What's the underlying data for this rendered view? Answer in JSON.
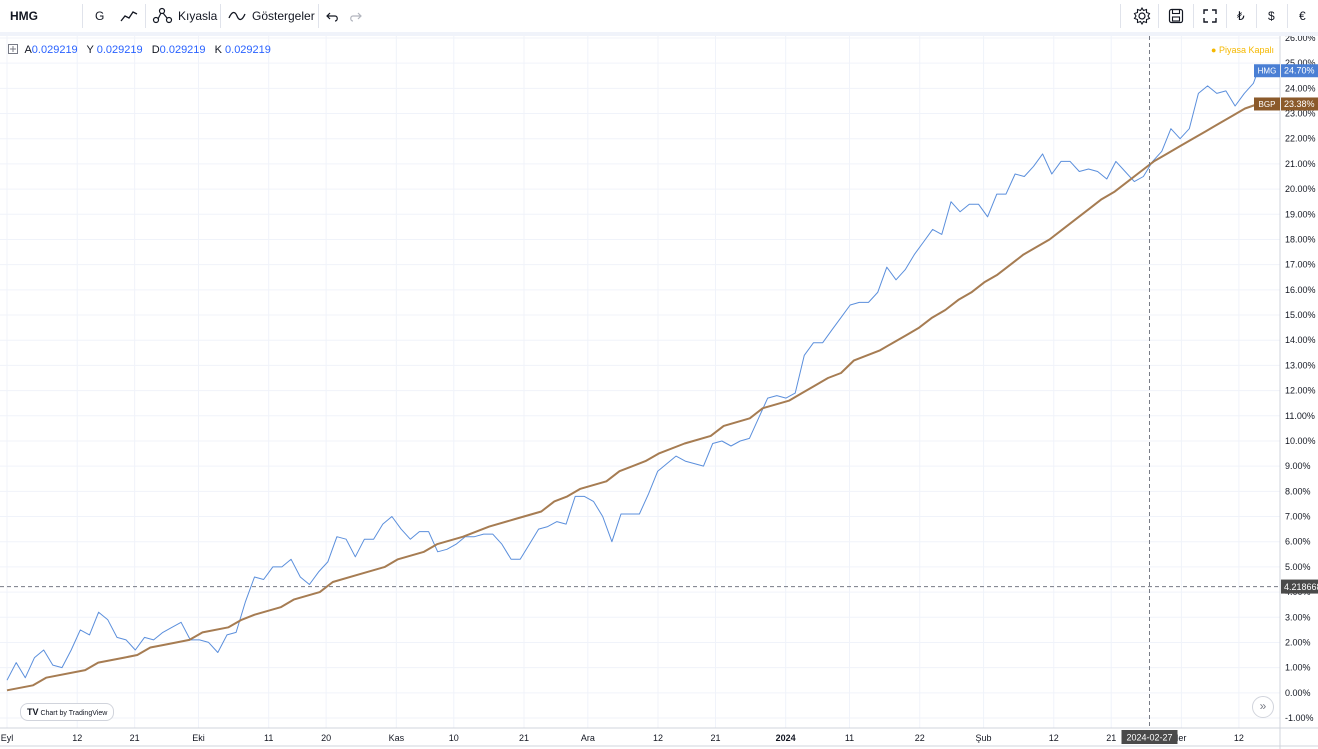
{
  "toolbar": {
    "symbol": "HMG",
    "interval": "G",
    "compare_label": "Kıyasla",
    "indicators_label": "Göstergeler",
    "currency_buttons": [
      "₺",
      "$",
      "€"
    ]
  },
  "legend": {
    "o_label": "A",
    "o_value": "0.029219",
    "h_label": "Y",
    "h_value": "0.029219",
    "l_label": "D",
    "l_value": "0.029219",
    "c_label": "K",
    "c_value": "0.029219"
  },
  "market_status": "Piyasa Kapalı",
  "badge_text": "Chart by TradingView",
  "colors": {
    "hmg": "#5b8fdc",
    "bgp": "#a67c52",
    "hmg_label_bg": "#4a7fd4",
    "bgp_label_bg": "#8b5a2b"
  },
  "chart_data": {
    "type": "line",
    "y_unit": "%",
    "ylim": [
      -1,
      26
    ],
    "y_ticks": [
      "-1.00%",
      "0.00%",
      "1.00%",
      "2.00%",
      "3.00%",
      "4.00%",
      "5.00%",
      "6.00%",
      "7.00%",
      "8.00%",
      "9.00%",
      "10.00%",
      "11.00%",
      "12.00%",
      "13.00%",
      "14.00%",
      "15.00%",
      "16.00%",
      "17.00%",
      "18.00%",
      "19.00%",
      "20.00%",
      "21.00%",
      "22.00%",
      "23.00%",
      "24.00%",
      "25.00%",
      "26.00%"
    ],
    "x_ticks": [
      {
        "label": "Eyl",
        "x": 0
      },
      {
        "label": "12",
        "x": 11
      },
      {
        "label": "21",
        "x": 20
      },
      {
        "label": "Eki",
        "x": 30
      },
      {
        "label": "11",
        "x": 41
      },
      {
        "label": "20",
        "x": 50
      },
      {
        "label": "Kas",
        "x": 61
      },
      {
        "label": "10",
        "x": 70
      },
      {
        "label": "21",
        "x": 81
      },
      {
        "label": "Ara",
        "x": 91
      },
      {
        "label": "12",
        "x": 102
      },
      {
        "label": "21",
        "x": 111
      },
      {
        "label": "2024",
        "x": 122
      },
      {
        "label": "11",
        "x": 132
      },
      {
        "label": "22",
        "x": 143
      },
      {
        "label": "Şub",
        "x": 153
      },
      {
        "label": "12",
        "x": 164
      },
      {
        "label": "21",
        "x": 173
      },
      {
        "label": "ler",
        "x": 184
      },
      {
        "label": "12",
        "x": 193
      }
    ],
    "crosshair": {
      "x_label": "2024-02-27",
      "x": 179,
      "y_label": "4.218668",
      "y": 4.218668
    },
    "series": [
      {
        "name": "HMG",
        "last_label": "24.70%",
        "x_end": 196,
        "points": [
          [
            0,
            0.5
          ],
          [
            2,
            1.2
          ],
          [
            4,
            0.6
          ],
          [
            6,
            1.4
          ],
          [
            8,
            1.7
          ],
          [
            10,
            1.1
          ],
          [
            12,
            1.0
          ],
          [
            14,
            1.7
          ],
          [
            16,
            2.5
          ],
          [
            18,
            2.3
          ],
          [
            20,
            3.2
          ],
          [
            22,
            2.9
          ],
          [
            24,
            2.2
          ],
          [
            26,
            2.1
          ],
          [
            28,
            1.7
          ],
          [
            30,
            2.2
          ],
          [
            32,
            2.1
          ],
          [
            34,
            2.4
          ],
          [
            36,
            2.6
          ],
          [
            38,
            2.8
          ],
          [
            40,
            2.1
          ],
          [
            42,
            2.1
          ],
          [
            44,
            2.0
          ],
          [
            46,
            1.6
          ],
          [
            48,
            2.3
          ],
          [
            50,
            2.4
          ],
          [
            52,
            3.6
          ],
          [
            54,
            4.6
          ],
          [
            56,
            4.5
          ],
          [
            58,
            5.0
          ],
          [
            60,
            5.0
          ],
          [
            62,
            5.3
          ],
          [
            64,
            4.6
          ],
          [
            66,
            4.3
          ],
          [
            68,
            4.8
          ],
          [
            70,
            5.2
          ],
          [
            72,
            6.2
          ],
          [
            74,
            6.1
          ],
          [
            76,
            5.4
          ],
          [
            78,
            6.1
          ],
          [
            80,
            6.1
          ],
          [
            82,
            6.7
          ],
          [
            84,
            7.0
          ],
          [
            86,
            6.5
          ],
          [
            88,
            6.1
          ],
          [
            90,
            6.4
          ],
          [
            92,
            6.4
          ],
          [
            94,
            5.6
          ],
          [
            96,
            5.7
          ],
          [
            98,
            5.9
          ],
          [
            100,
            6.2
          ],
          [
            102,
            6.2
          ],
          [
            104,
            6.3
          ],
          [
            106,
            6.3
          ],
          [
            108,
            5.9
          ],
          [
            110,
            5.3
          ],
          [
            112,
            5.3
          ],
          [
            114,
            5.9
          ],
          [
            116,
            6.5
          ],
          [
            118,
            6.6
          ],
          [
            120,
            6.8
          ],
          [
            122,
            6.7
          ],
          [
            124,
            7.8
          ],
          [
            126,
            7.8
          ],
          [
            128,
            7.6
          ],
          [
            130,
            7.0
          ],
          [
            132,
            6.0
          ],
          [
            134,
            7.1
          ],
          [
            136,
            7.1
          ],
          [
            138,
            7.1
          ],
          [
            140,
            7.9
          ],
          [
            142,
            8.8
          ],
          [
            144,
            9.1
          ],
          [
            146,
            9.4
          ],
          [
            148,
            9.2
          ],
          [
            150,
            9.1
          ],
          [
            152,
            9.0
          ],
          [
            154,
            9.9
          ],
          [
            156,
            10.0
          ],
          [
            158,
            9.8
          ],
          [
            160,
            10.0
          ],
          [
            162,
            10.1
          ],
          [
            164,
            10.9
          ],
          [
            166,
            11.7
          ],
          [
            168,
            11.8
          ],
          [
            170,
            11.7
          ],
          [
            172,
            11.9
          ],
          [
            174,
            13.4
          ],
          [
            176,
            13.9
          ],
          [
            178,
            13.9
          ],
          [
            180,
            14.4
          ],
          [
            182,
            14.9
          ],
          [
            184,
            15.4
          ],
          [
            186,
            15.5
          ],
          [
            188,
            15.5
          ],
          [
            190,
            15.9
          ],
          [
            192,
            16.9
          ],
          [
            194,
            16.4
          ],
          [
            196,
            16.8
          ],
          [
            198,
            17.4
          ],
          [
            200,
            17.9
          ],
          [
            202,
            18.4
          ],
          [
            204,
            18.2
          ],
          [
            206,
            19.5
          ],
          [
            208,
            19.1
          ],
          [
            210,
            19.4
          ],
          [
            212,
            19.4
          ],
          [
            214,
            18.9
          ],
          [
            216,
            19.8
          ],
          [
            218,
            19.8
          ],
          [
            220,
            20.6
          ],
          [
            222,
            20.5
          ],
          [
            224,
            20.9
          ],
          [
            226,
            21.4
          ],
          [
            228,
            20.6
          ],
          [
            230,
            21.1
          ],
          [
            232,
            21.1
          ],
          [
            234,
            20.7
          ],
          [
            236,
            20.8
          ],
          [
            238,
            20.7
          ],
          [
            240,
            20.4
          ],
          [
            242,
            21.1
          ],
          [
            244,
            20.7
          ],
          [
            246,
            20.3
          ],
          [
            248,
            20.5
          ],
          [
            250,
            21.1
          ],
          [
            252,
            21.5
          ],
          [
            254,
            22.4
          ],
          [
            256,
            22.0
          ],
          [
            258,
            22.4
          ],
          [
            260,
            23.8
          ],
          [
            262,
            24.1
          ],
          [
            264,
            23.8
          ],
          [
            266,
            23.9
          ],
          [
            268,
            23.3
          ],
          [
            270,
            23.8
          ],
          [
            272,
            24.2
          ],
          [
            273,
            24.7
          ]
        ]
      },
      {
        "name": "BGP",
        "last_label": "23.38%",
        "x_end": 196,
        "points": [
          [
            0,
            0.1
          ],
          [
            4,
            0.3
          ],
          [
            6,
            0.6
          ],
          [
            12,
            0.9
          ],
          [
            14,
            1.2
          ],
          [
            18,
            1.4
          ],
          [
            20,
            1.5
          ],
          [
            22,
            1.8
          ],
          [
            24,
            1.9
          ],
          [
            28,
            2.1
          ],
          [
            30,
            2.4
          ],
          [
            34,
            2.6
          ],
          [
            36,
            2.9
          ],
          [
            38,
            3.1
          ],
          [
            42,
            3.4
          ],
          [
            44,
            3.7
          ],
          [
            48,
            4.0
          ],
          [
            50,
            4.4
          ],
          [
            54,
            4.7
          ],
          [
            58,
            5.0
          ],
          [
            60,
            5.3
          ],
          [
            64,
            5.6
          ],
          [
            66,
            5.9
          ],
          [
            70,
            6.2
          ],
          [
            74,
            6.6
          ],
          [
            78,
            6.9
          ],
          [
            82,
            7.2
          ],
          [
            84,
            7.6
          ],
          [
            86,
            7.8
          ],
          [
            88,
            8.1
          ],
          [
            92,
            8.4
          ],
          [
            94,
            8.8
          ],
          [
            98,
            9.2
          ],
          [
            100,
            9.5
          ],
          [
            104,
            9.9
          ],
          [
            108,
            10.2
          ],
          [
            110,
            10.6
          ],
          [
            114,
            10.9
          ],
          [
            116,
            11.3
          ],
          [
            120,
            11.6
          ],
          [
            122,
            11.9
          ],
          [
            124,
            12.2
          ],
          [
            126,
            12.5
          ],
          [
            128,
            12.7
          ],
          [
            130,
            13.2
          ],
          [
            134,
            13.6
          ],
          [
            136,
            13.9
          ],
          [
            138,
            14.2
          ],
          [
            140,
            14.5
          ],
          [
            142,
            14.9
          ],
          [
            144,
            15.2
          ],
          [
            146,
            15.6
          ],
          [
            148,
            15.9
          ],
          [
            150,
            16.3
          ],
          [
            152,
            16.6
          ],
          [
            154,
            17.0
          ],
          [
            156,
            17.4
          ],
          [
            158,
            17.7
          ],
          [
            160,
            18.0
          ],
          [
            162,
            18.4
          ],
          [
            164,
            18.8
          ],
          [
            166,
            19.2
          ],
          [
            168,
            19.6
          ],
          [
            170,
            19.9
          ],
          [
            172,
            20.3
          ],
          [
            174,
            20.7
          ],
          [
            176,
            21.1
          ],
          [
            178,
            21.4
          ],
          [
            180,
            21.7
          ],
          [
            182,
            22.0
          ],
          [
            184,
            22.3
          ],
          [
            186,
            22.6
          ],
          [
            188,
            22.9
          ],
          [
            190,
            23.2
          ],
          [
            192,
            23.38
          ]
        ]
      }
    ]
  }
}
